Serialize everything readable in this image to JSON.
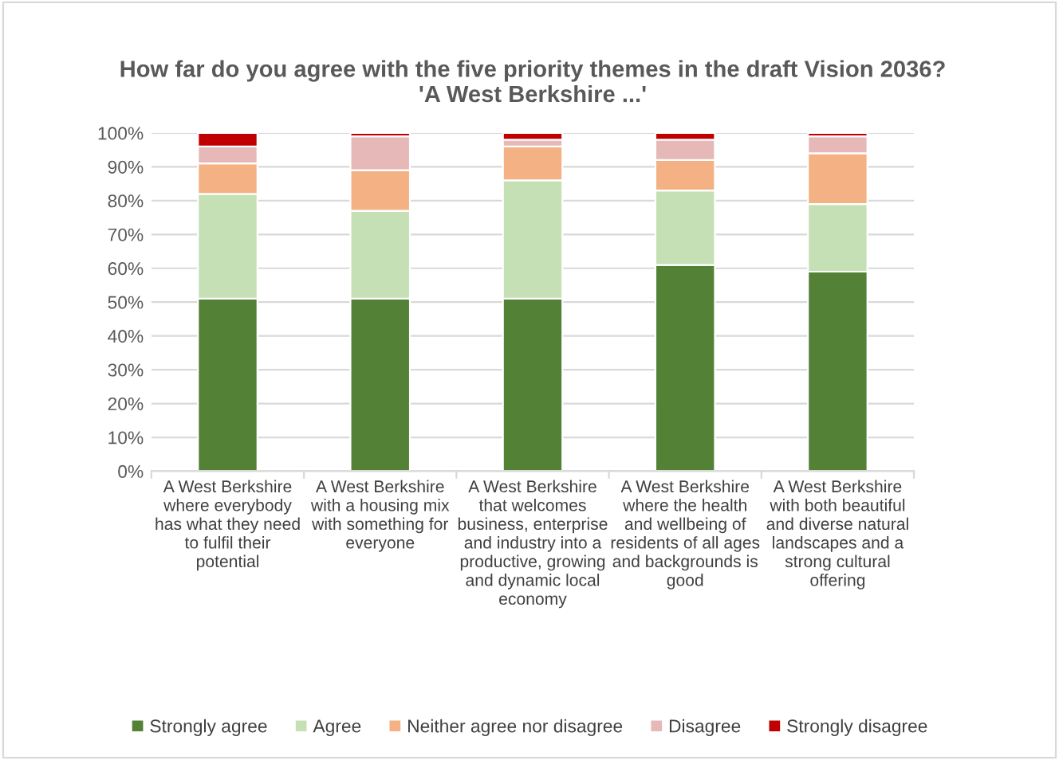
{
  "chart_data": {
    "type": "bar",
    "stacked": true,
    "title": "How far do you agree with the five priority themes in the draft Vision 2036?\n'A West Berkshire ...'",
    "categories": [
      "A West Berkshire\nwhere everybody\nhas what they need\nto fulfil their\npotential",
      "A West Berkshire\nwith a housing mix\nwith something for\neveryone",
      "A West Berkshire\nthat welcomes\nbusiness, enterprise\nand industry into a\nproductive, growing\nand dynamic local\neconomy",
      "A West Berkshire\nwhere the health\nand wellbeing of\nresidents of all ages\nand backgrounds is\ngood",
      "A West Berkshire\nwith both beautiful\nand diverse natural\nlandscapes and a\nstrong cultural\noffering"
    ],
    "series": [
      {
        "name": "Strongly agree",
        "color": "#538135",
        "values": [
          51,
          51,
          51,
          61,
          59
        ]
      },
      {
        "name": "Agree",
        "color": "#c5e0b4",
        "values": [
          31,
          26,
          35,
          22,
          20
        ]
      },
      {
        "name": "Neither agree nor disagree",
        "color": "#f4b183",
        "values": [
          9,
          12,
          10,
          9,
          15
        ]
      },
      {
        "name": "Disagree",
        "color": "#e6b9b8",
        "values": [
          5,
          10,
          2,
          6,
          5
        ]
      },
      {
        "name": "Strongly disagree",
        "color": "#c00000",
        "values": [
          4,
          1,
          2,
          2,
          1
        ]
      }
    ],
    "ylim": [
      0,
      100
    ],
    "yticks": [
      {
        "value": 0,
        "label": "0%"
      },
      {
        "value": 10,
        "label": "10%"
      },
      {
        "value": 20,
        "label": "20%"
      },
      {
        "value": 30,
        "label": "30%"
      },
      {
        "value": 40,
        "label": "40%"
      },
      {
        "value": 50,
        "label": "50%"
      },
      {
        "value": 60,
        "label": "60%"
      },
      {
        "value": 70,
        "label": "70%"
      },
      {
        "value": 80,
        "label": "80%"
      },
      {
        "value": 90,
        "label": "90%"
      },
      {
        "value": 100,
        "label": "100%"
      }
    ],
    "grid": "y",
    "legend": "bottom"
  }
}
